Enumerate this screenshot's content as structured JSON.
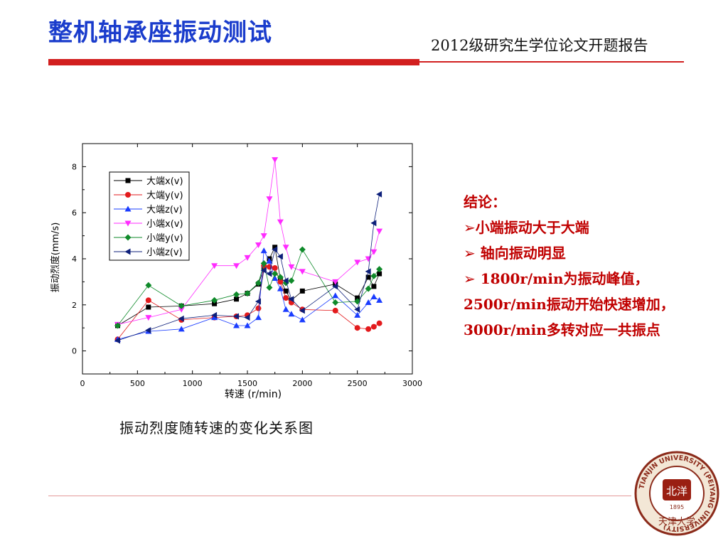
{
  "header": {
    "title": "整机轴承座振动测试",
    "subtitle": "2012级研究生学位论文开题报告"
  },
  "colors": {
    "title": "#1a3ccc",
    "accent_red": "#d21f1f",
    "conclusion": "#c00000"
  },
  "chart_data": {
    "type": "line",
    "xlabel": "转速 (r/min)",
    "ylabel": "振动烈度(mm/s)",
    "xlim": [
      0,
      3000
    ],
    "ylim": [
      -1,
      9
    ],
    "xticks": [
      "0",
      "500",
      "1000",
      "1500",
      "2000",
      "2500",
      "3000"
    ],
    "yticks": [
      "0",
      "2",
      "4",
      "6",
      "8"
    ],
    "legend_position": "top-left",
    "grid": false,
    "series": [
      {
        "name": "大端x(v)",
        "color": "#000000",
        "marker": "square",
        "x": [
          320,
          600,
          900,
          1200,
          1400,
          1500,
          1600,
          1650,
          1700,
          1750,
          1800,
          1850,
          1900,
          2000,
          2300,
          2500,
          2600,
          2650,
          2700
        ],
        "y": [
          1.1,
          1.9,
          1.95,
          2.05,
          2.25,
          2.5,
          2.9,
          3.6,
          4.0,
          4.5,
          3.1,
          2.6,
          2.2,
          2.6,
          2.9,
          2.3,
          3.2,
          2.8,
          3.35
        ]
      },
      {
        "name": "大端y(v)",
        "color": "#e31a1c",
        "marker": "circle",
        "x": [
          320,
          600,
          900,
          1200,
          1400,
          1500,
          1600,
          1650,
          1700,
          1750,
          1800,
          1850,
          1900,
          2000,
          2300,
          2500,
          2600,
          2650,
          2700
        ],
        "y": [
          0.5,
          2.2,
          1.35,
          1.45,
          1.5,
          1.55,
          1.85,
          3.7,
          3.65,
          3.6,
          3.0,
          2.3,
          2.1,
          1.8,
          1.75,
          1.0,
          0.95,
          1.05,
          1.2
        ]
      },
      {
        "name": "大端z(v)",
        "color": "#1a3cff",
        "marker": "triangle-up",
        "x": [
          320,
          600,
          900,
          1200,
          1400,
          1500,
          1600,
          1650,
          1700,
          1750,
          1800,
          1850,
          1900,
          2000,
          2300,
          2500,
          2600,
          2650,
          2700
        ],
        "y": [
          0.5,
          0.85,
          0.95,
          1.45,
          1.1,
          1.1,
          1.45,
          4.35,
          3.9,
          3.15,
          2.7,
          1.8,
          1.6,
          1.35,
          2.4,
          1.55,
          2.1,
          2.35,
          2.2
        ]
      },
      {
        "name": "小端x(v)",
        "color": "#ff2bff",
        "marker": "triangle-down",
        "x": [
          320,
          600,
          900,
          1200,
          1400,
          1500,
          1600,
          1650,
          1700,
          1750,
          1800,
          1850,
          1900,
          2000,
          2300,
          2500,
          2600,
          2650,
          2700
        ],
        "y": [
          1.15,
          1.45,
          1.8,
          3.7,
          3.7,
          4.05,
          4.6,
          5.0,
          6.6,
          8.3,
          5.6,
          4.5,
          3.65,
          3.45,
          3.0,
          3.85,
          4.0,
          4.3,
          5.2
        ]
      },
      {
        "name": "小端y(v)",
        "color": "#0f8a2a",
        "marker": "diamond",
        "x": [
          320,
          600,
          900,
          1200,
          1400,
          1500,
          1600,
          1650,
          1700,
          1750,
          1800,
          1850,
          1900,
          2000,
          2300,
          2500,
          2600,
          2650,
          2700
        ],
        "y": [
          1.1,
          2.85,
          1.95,
          2.2,
          2.45,
          2.5,
          2.95,
          3.8,
          2.75,
          3.35,
          3.2,
          2.95,
          3.05,
          4.4,
          2.1,
          2.15,
          2.7,
          3.25,
          3.55
        ]
      },
      {
        "name": "小端z(v)",
        "color": "#0d1f7a",
        "marker": "triangle-left",
        "x": [
          320,
          600,
          900,
          1200,
          1400,
          1500,
          1600,
          1650,
          1700,
          1750,
          1800,
          1850,
          1900,
          2000,
          2300,
          2500,
          2600,
          2650,
          2700
        ],
        "y": [
          0.45,
          0.9,
          1.4,
          1.55,
          1.5,
          1.45,
          2.15,
          3.5,
          3.35,
          4.4,
          4.1,
          3.05,
          2.25,
          1.75,
          2.8,
          1.8,
          3.45,
          5.55,
          6.8
        ]
      }
    ]
  },
  "caption": "振动烈度随转速的变化关系图",
  "conclusion": {
    "heading": "结论：",
    "marker": "➢",
    "item1": "小端振动大于大端",
    "item2": "轴向振动明显",
    "item3_a": "1800r/min为振动峰值，2500r/min振动开始快速增加，",
    "item3_b": "3000r/min",
    "item3_c": "多转对应一共振点"
  },
  "seal": {
    "ring_text": "TIANJIN UNIVERSITY (PEIYANG UNIVERSITY)",
    "center_text": "北洋",
    "year": "1895",
    "bottom_text": "天津大学"
  }
}
